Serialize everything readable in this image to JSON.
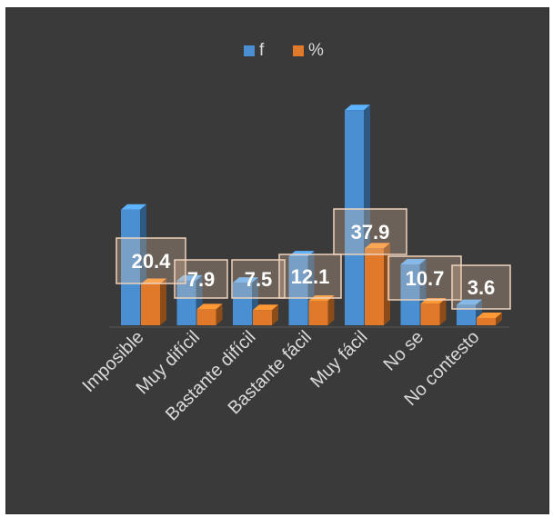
{
  "chart_data": {
    "type": "bar",
    "style": "3d-clustered-column",
    "categories": [
      "Imposible",
      "Muy difícil",
      "Bastante difícil",
      "Bastante fácil",
      "Muy fácil",
      "No se",
      "No contesto"
    ],
    "series": [
      {
        "name": "f",
        "values": [
          57,
          22,
          21,
          34,
          106,
          30,
          10
        ],
        "color": "#4a8fd1"
      },
      {
        "name": "%",
        "values": [
          20.4,
          7.9,
          7.5,
          12.1,
          37.9,
          10.7,
          3.6
        ],
        "color": "#e07a2a"
      }
    ],
    "data_labels": [
      "20.4",
      "7.9",
      "7.5",
      "12.1",
      "37.9",
      "10.7",
      "3.6"
    ],
    "legend_position": "top",
    "grid": false,
    "ylim": [
      0,
      120
    ],
    "background": "#3a3a3a",
    "text_color": "#d9d9d9"
  }
}
